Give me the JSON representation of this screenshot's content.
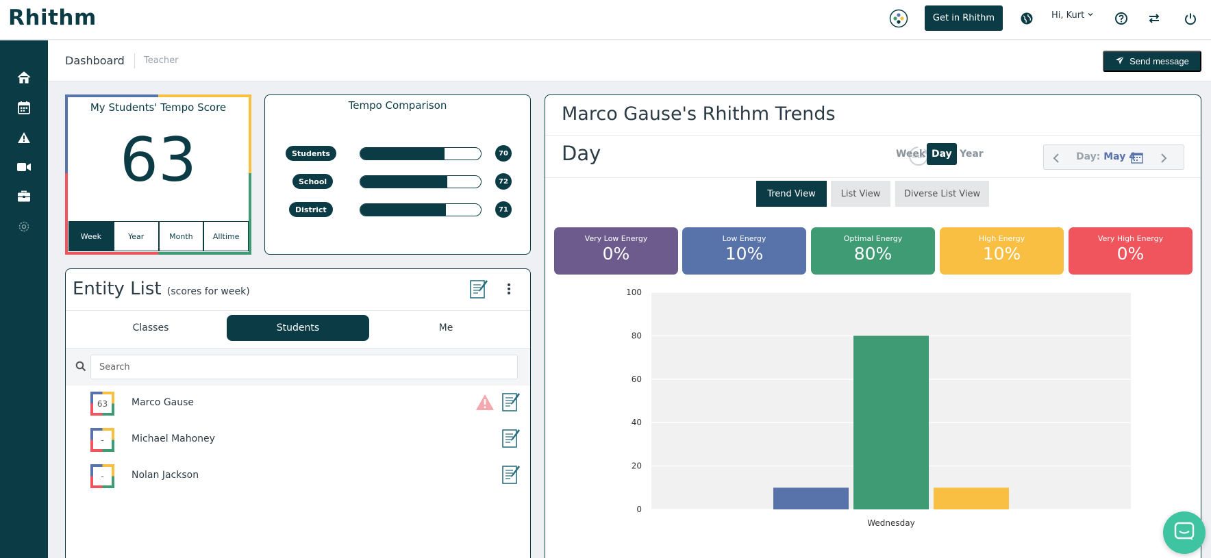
{
  "app": {
    "logo": "Rhithm"
  },
  "topbar": {
    "get_button": "Get in Rhithm",
    "greeting": "Hi, Kurt",
    "icons": [
      "integration-icon",
      "globe-icon",
      "help-icon",
      "switch-icon",
      "power-icon"
    ]
  },
  "sidebar": {
    "icons": [
      "home-icon",
      "calendar-icon",
      "alert-icon",
      "video-icon",
      "toolbox-icon",
      "settings-icon"
    ]
  },
  "subheader": {
    "title": "Dashboard",
    "role": "Teacher",
    "send_button": "Send message"
  },
  "tempo": {
    "title": "My Students' Tempo Score",
    "score": "63",
    "ranges": [
      "Week",
      "Year",
      "Month",
      "Alltime"
    ],
    "active_range": "Week"
  },
  "comparison": {
    "title": "Tempo Comparison",
    "rows": [
      {
        "label": "Students",
        "value": "70",
        "fill": 0.7
      },
      {
        "label": "School",
        "value": "72",
        "fill": 0.72
      },
      {
        "label": "District",
        "value": "71",
        "fill": 0.71
      }
    ]
  },
  "entity": {
    "title": "Entity List",
    "subtitle": "(scores for week)",
    "tabs": [
      "Classes",
      "Students",
      "Me"
    ],
    "active_tab": "Students",
    "search_placeholder": "Search",
    "students": [
      {
        "name": "Marco Gause",
        "score": "63",
        "warning": true
      },
      {
        "name": "Michael Mahoney",
        "score": "-",
        "warning": false
      },
      {
        "name": "Nolan Jackson",
        "score": "-",
        "warning": false
      }
    ]
  },
  "trends": {
    "title": "Marco Gause's Rhithm Trends",
    "period_label": "Day",
    "reset_label": "reset",
    "periods": [
      "Week",
      "Day",
      "Year"
    ],
    "active_period": "Day",
    "date_prefix": "Day:",
    "date_value": "May 4",
    "views": [
      "Trend View",
      "List View",
      "Diverse List View"
    ],
    "active_view": "Trend View",
    "energy": [
      {
        "label": "Very Low Energy",
        "value": "0%",
        "color": "#6d5b8e"
      },
      {
        "label": "Low Energy",
        "value": "10%",
        "color": "#5873aa"
      },
      {
        "label": "Optimal Energy",
        "value": "80%",
        "color": "#3e9b74"
      },
      {
        "label": "High Energy",
        "value": "10%",
        "color": "#f8bf43"
      },
      {
        "label": "Very High Energy",
        "value": "0%",
        "color": "#f0545c"
      }
    ]
  },
  "chart_data": {
    "type": "bar",
    "categories": [
      "Wednesday"
    ],
    "series": [
      {
        "name": "Low Energy",
        "values": [
          10
        ],
        "color": "#5873aa"
      },
      {
        "name": "Optimal Energy",
        "values": [
          80
        ],
        "color": "#3e9b74"
      },
      {
        "name": "High Energy",
        "values": [
          10
        ],
        "color": "#f8bf43"
      }
    ],
    "ylim": [
      0,
      100
    ],
    "yticks": [
      0,
      20,
      40,
      60,
      80,
      100
    ],
    "grid": true
  }
}
